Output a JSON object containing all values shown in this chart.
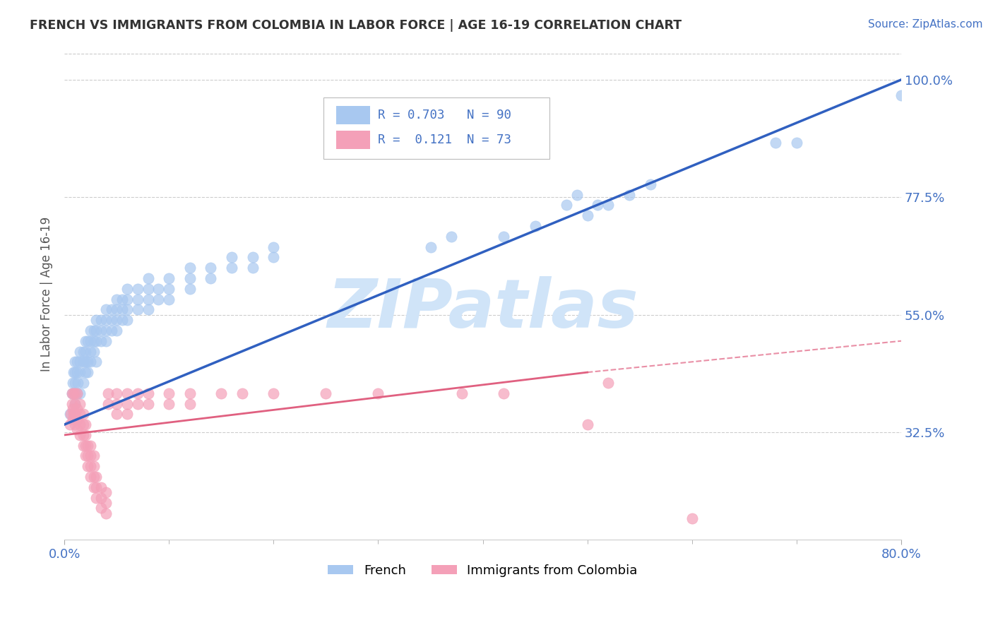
{
  "title": "FRENCH VS IMMIGRANTS FROM COLOMBIA IN LABOR FORCE | AGE 16-19 CORRELATION CHART",
  "source": "Source: ZipAtlas.com",
  "ylabel": "In Labor Force | Age 16-19",
  "xlim": [
    0.0,
    0.8
  ],
  "ylim": [
    0.12,
    1.06
  ],
  "ytick_values": [
    0.325,
    0.55,
    0.775,
    1.0
  ],
  "ytick_labels": [
    "32.5%",
    "55.0%",
    "77.5%",
    "100.0%"
  ],
  "french_color": "#a8c8f0",
  "colombia_color": "#f4a0b8",
  "french_line_color": "#3060c0",
  "colombia_line_color": "#e06080",
  "watermark": "ZIPatlas",
  "watermark_color": "#d0e4f8",
  "french_scatter": [
    [
      0.005,
      0.36
    ],
    [
      0.007,
      0.4
    ],
    [
      0.008,
      0.42
    ],
    [
      0.009,
      0.44
    ],
    [
      0.01,
      0.38
    ],
    [
      0.01,
      0.42
    ],
    [
      0.01,
      0.44
    ],
    [
      0.01,
      0.46
    ],
    [
      0.012,
      0.4
    ],
    [
      0.012,
      0.44
    ],
    [
      0.012,
      0.46
    ],
    [
      0.013,
      0.42
    ],
    [
      0.015,
      0.4
    ],
    [
      0.015,
      0.44
    ],
    [
      0.015,
      0.46
    ],
    [
      0.015,
      0.48
    ],
    [
      0.018,
      0.42
    ],
    [
      0.018,
      0.46
    ],
    [
      0.018,
      0.48
    ],
    [
      0.02,
      0.44
    ],
    [
      0.02,
      0.46
    ],
    [
      0.02,
      0.48
    ],
    [
      0.02,
      0.5
    ],
    [
      0.022,
      0.44
    ],
    [
      0.022,
      0.46
    ],
    [
      0.022,
      0.5
    ],
    [
      0.025,
      0.46
    ],
    [
      0.025,
      0.48
    ],
    [
      0.025,
      0.5
    ],
    [
      0.025,
      0.52
    ],
    [
      0.028,
      0.48
    ],
    [
      0.028,
      0.5
    ],
    [
      0.028,
      0.52
    ],
    [
      0.03,
      0.46
    ],
    [
      0.03,
      0.5
    ],
    [
      0.03,
      0.52
    ],
    [
      0.03,
      0.54
    ],
    [
      0.035,
      0.5
    ],
    [
      0.035,
      0.52
    ],
    [
      0.035,
      0.54
    ],
    [
      0.04,
      0.5
    ],
    [
      0.04,
      0.52
    ],
    [
      0.04,
      0.54
    ],
    [
      0.04,
      0.56
    ],
    [
      0.045,
      0.52
    ],
    [
      0.045,
      0.54
    ],
    [
      0.045,
      0.56
    ],
    [
      0.05,
      0.52
    ],
    [
      0.05,
      0.54
    ],
    [
      0.05,
      0.56
    ],
    [
      0.05,
      0.58
    ],
    [
      0.055,
      0.54
    ],
    [
      0.055,
      0.56
    ],
    [
      0.055,
      0.58
    ],
    [
      0.06,
      0.54
    ],
    [
      0.06,
      0.56
    ],
    [
      0.06,
      0.58
    ],
    [
      0.06,
      0.6
    ],
    [
      0.07,
      0.56
    ],
    [
      0.07,
      0.58
    ],
    [
      0.07,
      0.6
    ],
    [
      0.08,
      0.56
    ],
    [
      0.08,
      0.58
    ],
    [
      0.08,
      0.6
    ],
    [
      0.08,
      0.62
    ],
    [
      0.09,
      0.58
    ],
    [
      0.09,
      0.6
    ],
    [
      0.1,
      0.58
    ],
    [
      0.1,
      0.6
    ],
    [
      0.1,
      0.62
    ],
    [
      0.12,
      0.6
    ],
    [
      0.12,
      0.62
    ],
    [
      0.12,
      0.64
    ],
    [
      0.14,
      0.62
    ],
    [
      0.14,
      0.64
    ],
    [
      0.16,
      0.64
    ],
    [
      0.16,
      0.66
    ],
    [
      0.18,
      0.64
    ],
    [
      0.18,
      0.66
    ],
    [
      0.2,
      0.66
    ],
    [
      0.2,
      0.68
    ],
    [
      0.35,
      0.68
    ],
    [
      0.37,
      0.7
    ],
    [
      0.42,
      0.7
    ],
    [
      0.45,
      0.72
    ],
    [
      0.48,
      0.76
    ],
    [
      0.49,
      0.78
    ],
    [
      0.5,
      0.74
    ],
    [
      0.51,
      0.76
    ],
    [
      0.52,
      0.76
    ],
    [
      0.54,
      0.78
    ],
    [
      0.56,
      0.8
    ],
    [
      0.68,
      0.88
    ],
    [
      0.7,
      0.88
    ],
    [
      0.8,
      0.97
    ],
    [
      0.81,
      0.98
    ]
  ],
  "colombia_scatter": [
    [
      0.005,
      0.34
    ],
    [
      0.006,
      0.36
    ],
    [
      0.007,
      0.38
    ],
    [
      0.007,
      0.4
    ],
    [
      0.008,
      0.35
    ],
    [
      0.008,
      0.37
    ],
    [
      0.009,
      0.36
    ],
    [
      0.009,
      0.4
    ],
    [
      0.01,
      0.34
    ],
    [
      0.01,
      0.36
    ],
    [
      0.01,
      0.38
    ],
    [
      0.01,
      0.4
    ],
    [
      0.012,
      0.33
    ],
    [
      0.012,
      0.35
    ],
    [
      0.012,
      0.37
    ],
    [
      0.012,
      0.4
    ],
    [
      0.015,
      0.32
    ],
    [
      0.015,
      0.34
    ],
    [
      0.015,
      0.36
    ],
    [
      0.015,
      0.38
    ],
    [
      0.018,
      0.3
    ],
    [
      0.018,
      0.32
    ],
    [
      0.018,
      0.34
    ],
    [
      0.018,
      0.36
    ],
    [
      0.02,
      0.28
    ],
    [
      0.02,
      0.3
    ],
    [
      0.02,
      0.32
    ],
    [
      0.02,
      0.34
    ],
    [
      0.022,
      0.26
    ],
    [
      0.022,
      0.28
    ],
    [
      0.022,
      0.3
    ],
    [
      0.025,
      0.24
    ],
    [
      0.025,
      0.26
    ],
    [
      0.025,
      0.28
    ],
    [
      0.025,
      0.3
    ],
    [
      0.028,
      0.22
    ],
    [
      0.028,
      0.24
    ],
    [
      0.028,
      0.26
    ],
    [
      0.028,
      0.28
    ],
    [
      0.03,
      0.2
    ],
    [
      0.03,
      0.22
    ],
    [
      0.03,
      0.24
    ],
    [
      0.035,
      0.18
    ],
    [
      0.035,
      0.2
    ],
    [
      0.035,
      0.22
    ],
    [
      0.04,
      0.17
    ],
    [
      0.04,
      0.19
    ],
    [
      0.04,
      0.21
    ],
    [
      0.042,
      0.38
    ],
    [
      0.042,
      0.4
    ],
    [
      0.05,
      0.36
    ],
    [
      0.05,
      0.38
    ],
    [
      0.05,
      0.4
    ],
    [
      0.06,
      0.36
    ],
    [
      0.06,
      0.38
    ],
    [
      0.06,
      0.4
    ],
    [
      0.07,
      0.38
    ],
    [
      0.07,
      0.4
    ],
    [
      0.08,
      0.38
    ],
    [
      0.08,
      0.4
    ],
    [
      0.1,
      0.38
    ],
    [
      0.1,
      0.4
    ],
    [
      0.12,
      0.38
    ],
    [
      0.12,
      0.4
    ],
    [
      0.15,
      0.4
    ],
    [
      0.17,
      0.4
    ],
    [
      0.2,
      0.4
    ],
    [
      0.25,
      0.4
    ],
    [
      0.3,
      0.4
    ],
    [
      0.38,
      0.4
    ],
    [
      0.42,
      0.4
    ],
    [
      0.5,
      0.34
    ],
    [
      0.52,
      0.42
    ],
    [
      0.6,
      0.16
    ]
  ]
}
